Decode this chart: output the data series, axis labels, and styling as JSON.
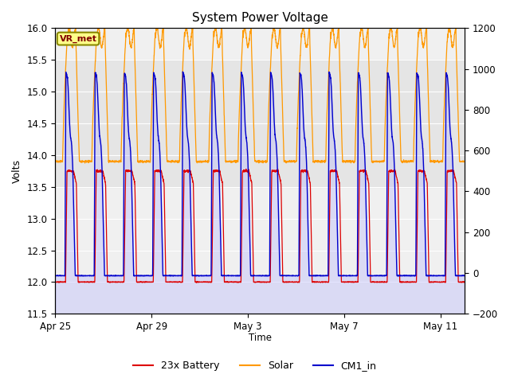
{
  "title": "System Power Voltage",
  "xlabel": "Time",
  "ylabel_left": "Volts",
  "ylim_left": [
    11.5,
    16.0
  ],
  "ylim_right": [
    -200,
    1200
  ],
  "x_tick_labels": [
    "Apr 25",
    "Apr 29",
    "May 3",
    "May 7",
    "May 11"
  ],
  "x_tick_positions": [
    0,
    4,
    8,
    12,
    16
  ],
  "yticks_left": [
    11.5,
    12.0,
    12.5,
    13.0,
    13.5,
    14.0,
    14.5,
    15.0,
    15.5,
    16.0
  ],
  "yticks_right": [
    -200,
    0,
    200,
    400,
    600,
    800,
    1000,
    1200
  ],
  "annotation": "VR_met",
  "legend_labels": [
    "23x Battery",
    "Solar",
    "CM1_in"
  ],
  "legend_colors": [
    "#dd0000",
    "#ff9900",
    "#0000cc"
  ],
  "bg_color": "#ffffff",
  "plot_bg_color": "#f0f0f0",
  "gray_band_lo": 13.5,
  "gray_band_hi": 15.5,
  "n_days": 17,
  "n_cycles": 14,
  "battery_night": 12.0,
  "battery_day": 13.75,
  "solar_night": 13.9,
  "solar_peak": 15.95,
  "cm1_night": 12.1,
  "cm1_peak": 15.3,
  "fill_color": "#aaaaff",
  "fill_alpha": 0.3
}
